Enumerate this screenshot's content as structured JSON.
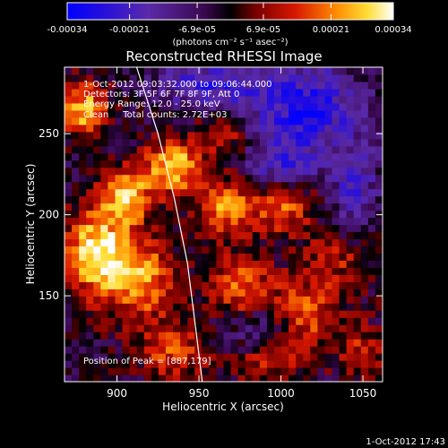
{
  "chart_data": {
    "type": "heatmap",
    "title": "Reconstructed RHESSI Image",
    "xlabel": "Heliocentric X (arcsec)",
    "ylabel": "Heliocentric Y (arcsec)",
    "xlim": [
      868,
      1062
    ],
    "ylim": [
      97,
      291
    ],
    "x_ticks": [
      900,
      950,
      1000,
      1050
    ],
    "y_ticks": [
      150,
      200,
      250
    ],
    "colorbar": {
      "min": -0.00034,
      "max": 0.00034,
      "tick_values": [
        -0.00034,
        -0.00021,
        -6.9e-05,
        6.9e-05,
        0.00021,
        0.00034
      ],
      "tick_labels": [
        "-0.00034",
        "-0.00021",
        "-6.9e-05",
        "6.9e-05",
        "0.00021",
        "0.00034"
      ],
      "unit_label": "(photons cm⁻² s⁻¹ asec⁻²)"
    },
    "annotations": [
      "1-Oct-2012 09:03:32.000 to 09:06:44.000",
      "Detectors: 3F 5F 6F 7F 8F 9F, Att 0",
      "Energy Range: 12.0 - 25.0 keV",
      "Clean     Total counts: 2.72E+03"
    ],
    "peak_label": "Position of Peak = [887,179]",
    "peak": [
      887,
      179
    ],
    "limb_curve": [
      [
        912,
        291
      ],
      [
        925,
        250
      ],
      [
        935,
        210
      ],
      [
        943,
        170
      ],
      [
        948,
        130
      ],
      [
        952,
        97
      ]
    ],
    "hot_regions": [
      {
        "x": 887,
        "y": 177,
        "sx": 14,
        "sy": 18,
        "amp": 1.0
      },
      {
        "x": 880,
        "y": 265,
        "sx": 10,
        "sy": 12,
        "amp": 0.85
      },
      {
        "x": 905,
        "y": 212,
        "sx": 11,
        "sy": 12,
        "amp": 0.85
      },
      {
        "x": 935,
        "y": 230,
        "sx": 13,
        "sy": 12,
        "amp": 0.9
      },
      {
        "x": 915,
        "y": 160,
        "sx": 15,
        "sy": 18,
        "amp": 0.75
      },
      {
        "x": 965,
        "y": 205,
        "sx": 12,
        "sy": 12,
        "amp": 0.7
      },
      {
        "x": 1000,
        "y": 205,
        "sx": 14,
        "sy": 12,
        "amp": 0.6
      },
      {
        "x": 975,
        "y": 155,
        "sx": 13,
        "sy": 14,
        "amp": 0.65
      },
      {
        "x": 1015,
        "y": 140,
        "sx": 16,
        "sy": 18,
        "amp": 0.55
      },
      {
        "x": 935,
        "y": 115,
        "sx": 14,
        "sy": 12,
        "amp": 0.55
      },
      {
        "x": 965,
        "y": 250,
        "sx": 10,
        "sy": 10,
        "amp": 0.45
      },
      {
        "x": 1050,
        "y": 115,
        "sx": 10,
        "sy": 12,
        "amp": 0.4
      },
      {
        "x": 990,
        "y": 110,
        "sx": 14,
        "sy": 10,
        "amp": 0.45
      },
      {
        "x": 1035,
        "y": 175,
        "sx": 12,
        "sy": 12,
        "amp": 0.4
      }
    ],
    "cold_regions": [
      {
        "x": 1015,
        "y": 265,
        "sx": 24,
        "sy": 20,
        "amp": 0.75
      },
      {
        "x": 955,
        "y": 280,
        "sx": 22,
        "sy": 10,
        "amp": 0.6
      },
      {
        "x": 1000,
        "y": 230,
        "sx": 14,
        "sy": 10,
        "amp": 0.5
      },
      {
        "x": 1045,
        "y": 215,
        "sx": 10,
        "sy": 20,
        "amp": 0.5
      },
      {
        "x": 985,
        "y": 130,
        "sx": 14,
        "sy": 12,
        "amp": 0.4
      }
    ]
  },
  "footer": {
    "timestamp": "1-Oct-2012 17:43"
  }
}
